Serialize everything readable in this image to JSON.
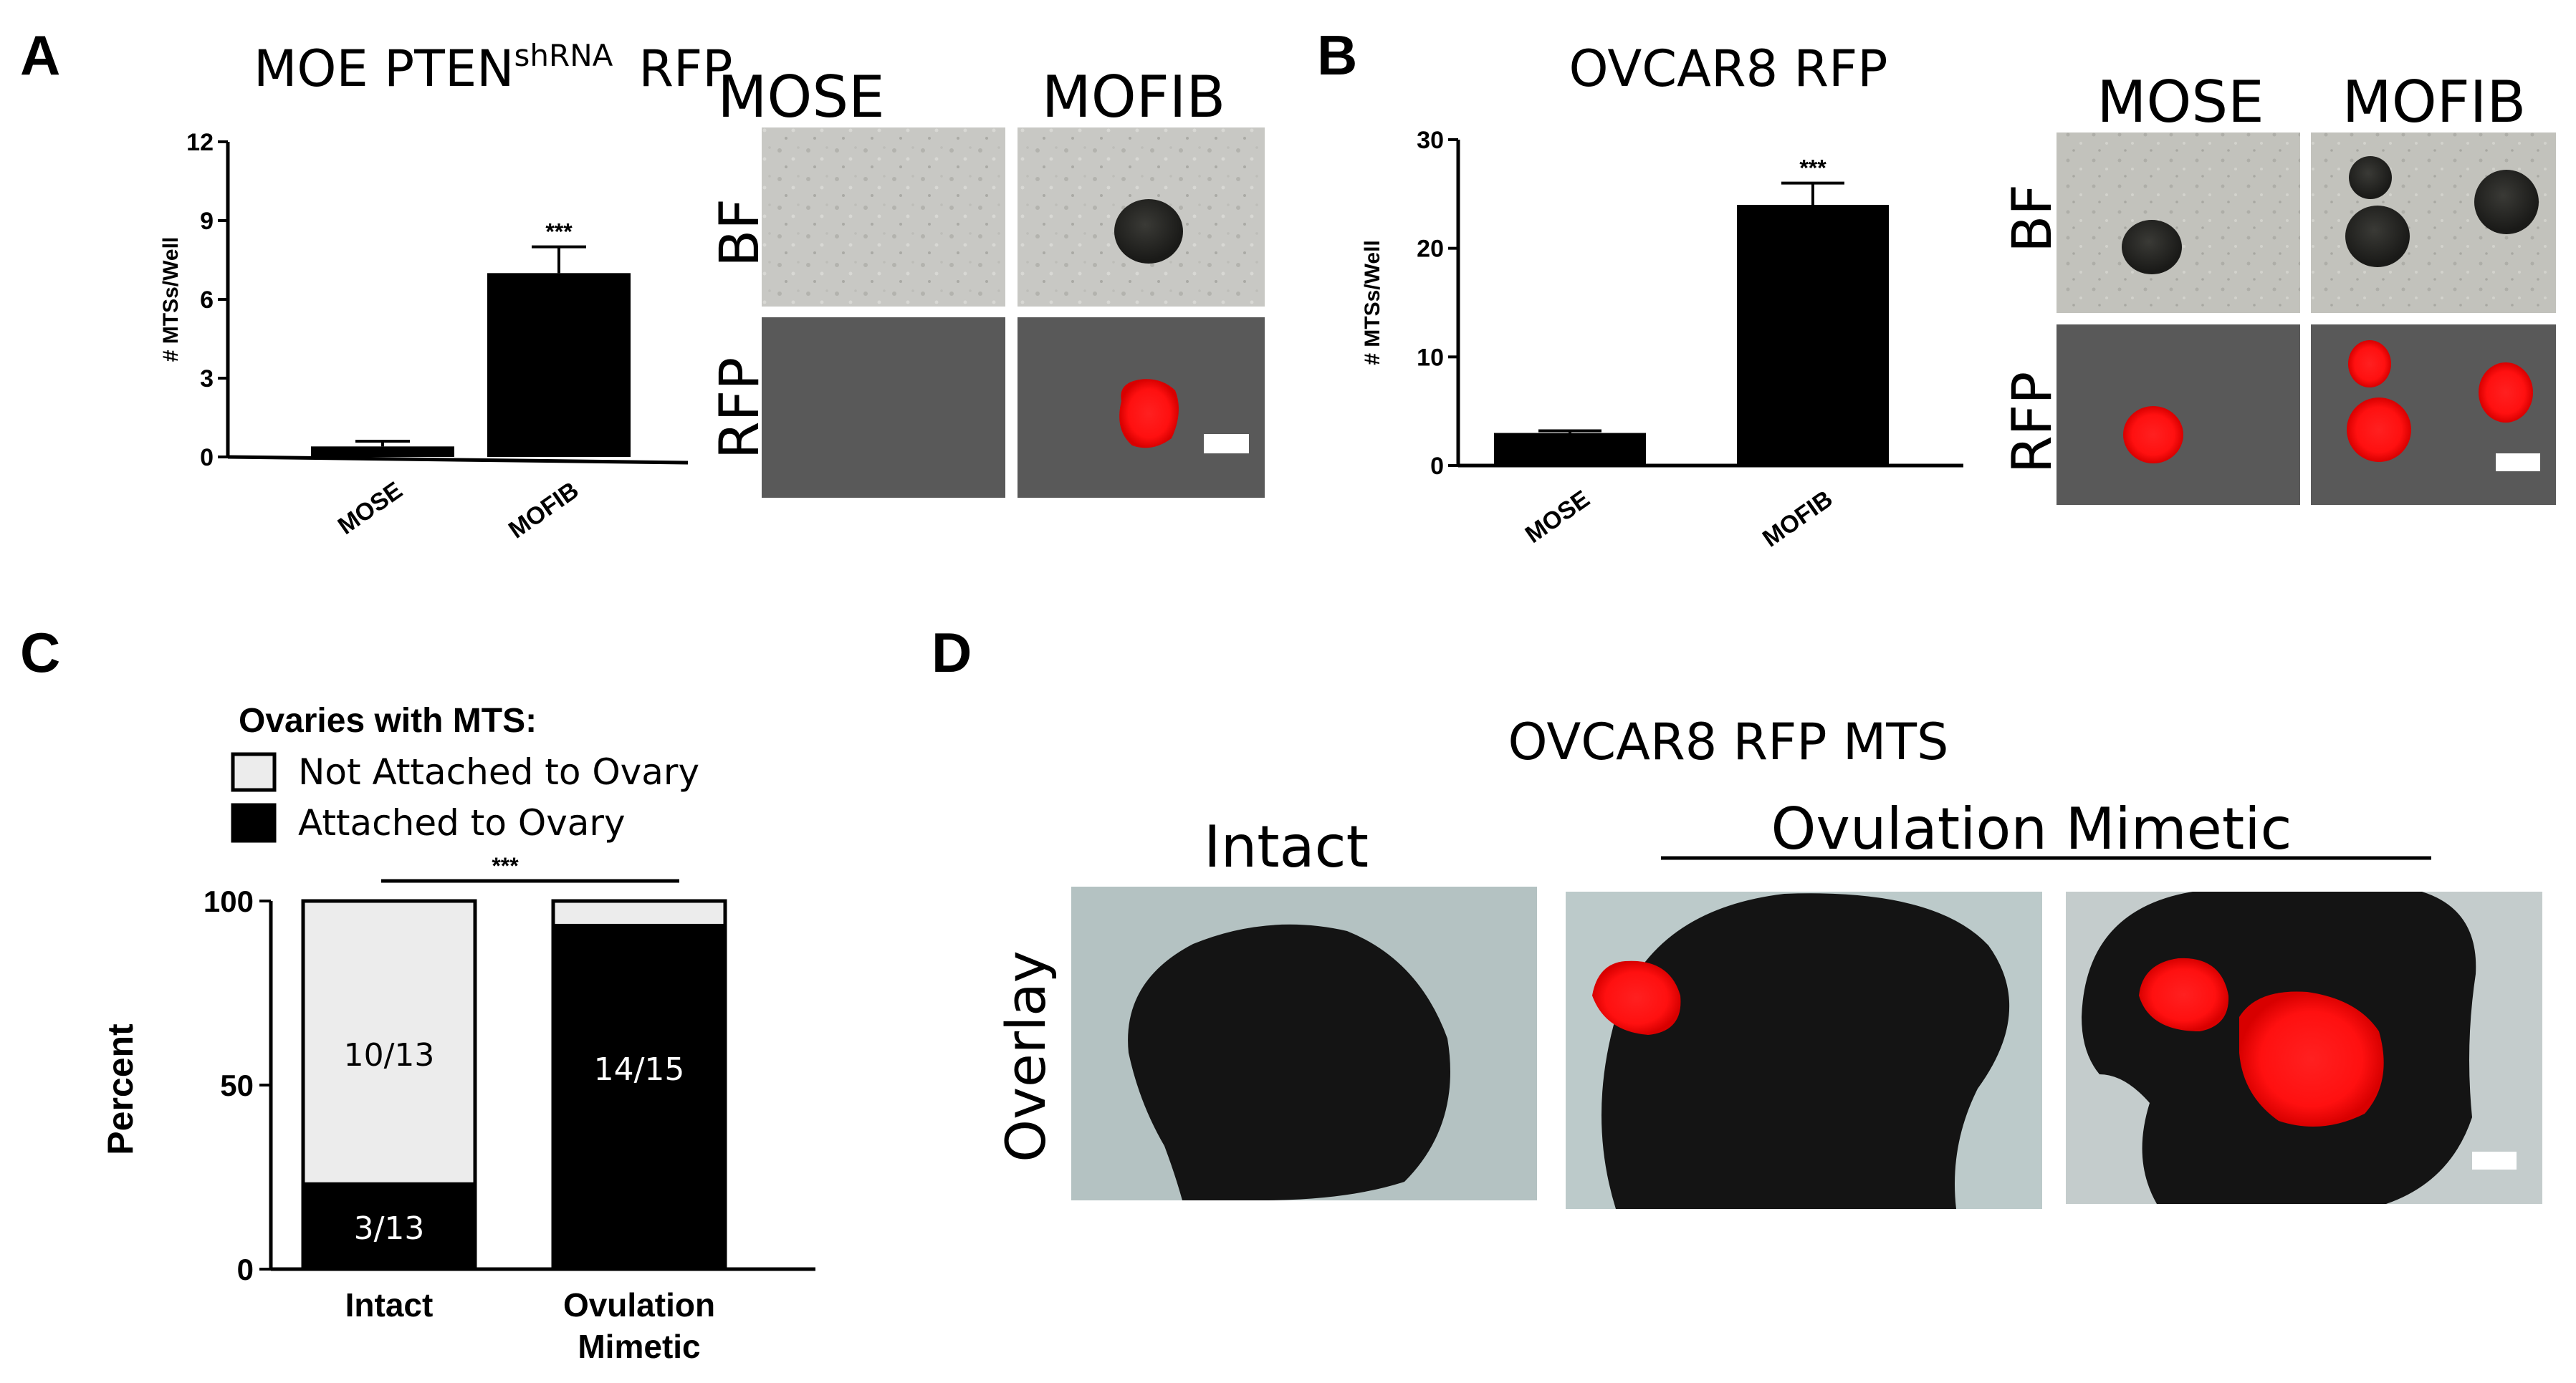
{
  "panel_a": {
    "letter": "A",
    "title_main": "MOE PTEN",
    "title_sup": "shRNA",
    "title_tail": "RFP",
    "col_mose": "MOSE",
    "col_mofib": "MOFIB",
    "row_bf": "BF",
    "row_rfp": "RFP"
  },
  "panel_b": {
    "letter": "B",
    "title": "OVCAR8 RFP",
    "col_mose": "MOSE",
    "col_mofib": "MOFIB",
    "row_bf": "BF",
    "row_rfp": "RFP"
  },
  "panel_c": {
    "letter": "C",
    "legend_title": "Ovaries with MTS:",
    "legend_not": "Not Attached to Ovary",
    "legend_att": "Attached to Ovary",
    "sig": "***",
    "intact_bottom_label": "3/13",
    "intact_top_label": "10/13",
    "ov_label": "14/15"
  },
  "panel_d": {
    "letter": "D",
    "title": "OVCAR8 RFP MTS",
    "intact": "Intact",
    "ovulation": "Ovulation Mimetic",
    "overlay": "Overlay"
  },
  "chart_data": [
    {
      "type": "bar",
      "panel": "A",
      "title": "MOE PTENshRNA RFP",
      "ylabel": "# MTSs/Well",
      "categories": [
        "MOSE",
        "MOFIB"
      ],
      "values": [
        0.4,
        7.0
      ],
      "errors": [
        0.2,
        1.0
      ],
      "ylim": [
        0,
        12
      ],
      "yticks": [
        0,
        3,
        6,
        9,
        12
      ],
      "annotation": "***",
      "colors": [
        "#000000",
        "#000000"
      ]
    },
    {
      "type": "bar",
      "panel": "B",
      "title": "OVCAR8 RFP",
      "ylabel": "# MTSs/Well",
      "categories": [
        "MOSE",
        "MOFIB"
      ],
      "values": [
        3.0,
        24.0
      ],
      "errors": [
        0.2,
        2.0
      ],
      "ylim": [
        0,
        30
      ],
      "yticks": [
        0,
        10,
        20,
        30
      ],
      "annotation": "***",
      "colors": [
        "#000000",
        "#000000"
      ]
    },
    {
      "type": "bar",
      "panel": "C",
      "stacked": true,
      "ylabel": "Percent",
      "categories": [
        "Intact",
        "Ovulation Mimetic"
      ],
      "series": [
        {
          "name": "Attached to Ovary",
          "values": [
            23.1,
            93.3
          ],
          "color": "#000000"
        },
        {
          "name": "Not Attached to Ovary",
          "values": [
            76.9,
            6.7
          ],
          "color": "#ececec"
        }
      ],
      "ylim": [
        0,
        100
      ],
      "yticks": [
        0,
        50,
        100
      ],
      "annotation": "***",
      "legend_title": "Ovaries with MTS:"
    }
  ]
}
